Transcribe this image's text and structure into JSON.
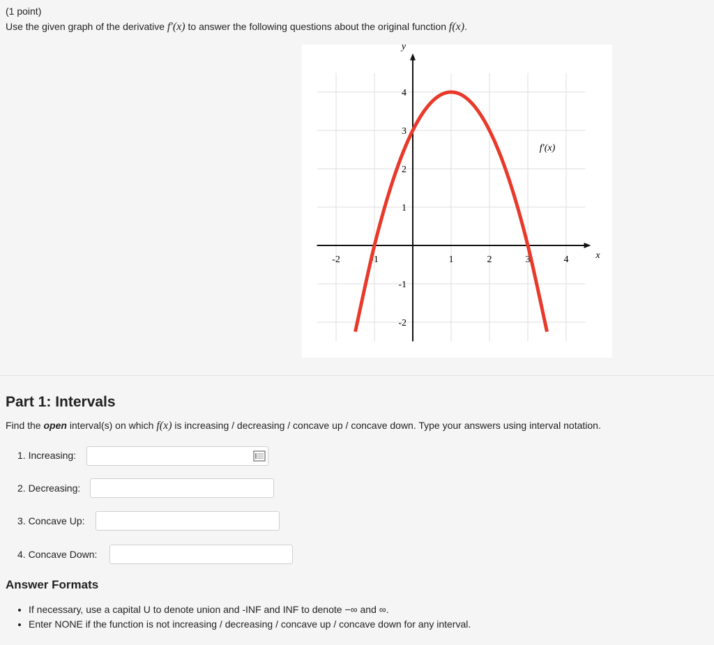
{
  "header": {
    "points": "(1 point)",
    "prompt": [
      "Use the given graph of the derivative ",
      "f′(x)",
      " to answer the following questions about the original function ",
      "f(x)",
      "."
    ]
  },
  "graph": {
    "type": "line",
    "x_label": "x",
    "y_label": "y",
    "curve_label": "f′(x)",
    "x": [
      -1.5,
      -1,
      -0.5,
      0,
      0.5,
      1,
      1.5,
      2,
      2.5,
      3,
      3.5
    ],
    "values": [
      -2.25,
      0,
      1.75,
      3,
      3.75,
      4,
      3.75,
      3,
      1.75,
      0,
      -2.25
    ],
    "color": "#e8392a",
    "xlim": [
      -2.5,
      4.5
    ],
    "ylim": [
      -2.5,
      4.5
    ],
    "xticks": [
      -2,
      -1,
      1,
      2,
      3,
      4
    ],
    "yticks": [
      -2,
      -1,
      1,
      2,
      3,
      4
    ],
    "grid": true
  },
  "part1": {
    "title": "Part 1: Intervals",
    "instruction": [
      "Find the ",
      "open",
      " interval(s) on which ",
      "f(x)",
      " is increasing / decreasing / concave up / concave down. Type your answers using interval notation."
    ],
    "fields": [
      "1. Increasing:",
      "2. Decreasing:",
      "3. Concave Up:",
      "4. Concave Down:"
    ]
  },
  "formats": {
    "title": "Answer Formats",
    "items": [
      "If necessary, use a capital U to denote union and -INF and INF to denote −∞ and ∞.",
      "Enter NONE if the function is not increasing / decreasing / concave up / concave down for any interval."
    ]
  }
}
